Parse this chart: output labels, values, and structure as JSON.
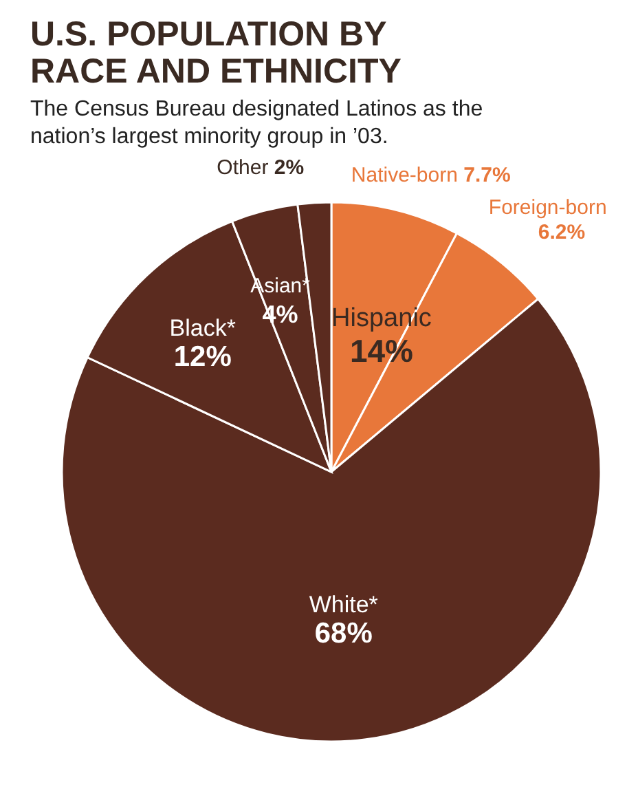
{
  "chart_data": {
    "type": "pie",
    "title": "U.S. POPULATION BY RACE AND ETHNICITY",
    "subtitle": "The Census Bureau designated Latinos as the nation’s largest minority group in ’03.",
    "categories": [
      "Native-born",
      "Foreign-born",
      "White*",
      "Black*",
      "Asian*",
      "Other"
    ],
    "values": [
      7.7,
      6.2,
      68,
      12,
      4,
      2
    ],
    "value_labels": [
      "7.7%",
      "6.2%",
      "68%",
      "12%",
      "4%",
      "2%"
    ],
    "colors": [
      "#e8773a",
      "#e8773a",
      "#5b2b1f",
      "#5b2b1f",
      "#5b2b1f",
      "#5b2b1f"
    ],
    "annotations": [
      "Hispanic 14%"
    ]
  }
}
